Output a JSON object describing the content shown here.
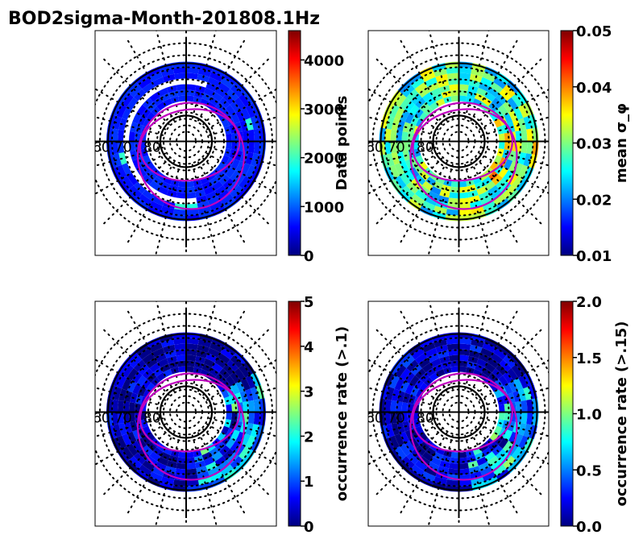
{
  "figure_title": "BOD2sigma-Month-201808.1Hz",
  "colormap": [
    "#00007f",
    "#0000ff",
    "#007fff",
    "#00ffff",
    "#7fff7f",
    "#ffff00",
    "#ff7f00",
    "#ff0000",
    "#7f0000"
  ],
  "trace_color": "#c000c0",
  "chart_data": [
    {
      "type": "heatmap",
      "projection": "polar",
      "lat_labels": [
        "60",
        "70",
        "80"
      ],
      "colorbar": {
        "label": "Data points",
        "min": 0,
        "max": 4600,
        "ticks": [
          "0",
          "1000",
          "2000",
          "3000",
          "4000"
        ],
        "tick_values": [
          0,
          1000,
          2000,
          3000,
          4000
        ]
      },
      "ring_level": 0.12,
      "variability": 0.08,
      "seed": 11
    },
    {
      "type": "heatmap",
      "projection": "polar",
      "lat_labels": [
        "60",
        "70",
        "80"
      ],
      "colorbar": {
        "label": "mean σ_φ",
        "min": 0.01,
        "max": 0.05,
        "ticks": [
          "0.01",
          "0.02",
          "0.03",
          "0.04",
          "0.05"
        ],
        "tick_values": [
          0.01,
          0.02,
          0.03,
          0.04,
          0.05
        ]
      },
      "ring_level": 0.45,
      "variability": 0.2,
      "seed": 23
    },
    {
      "type": "heatmap",
      "projection": "polar",
      "lat_labels": [
        "60",
        "70",
        "80"
      ],
      "colorbar": {
        "label": "occurrence rate (>.1)",
        "min": 0,
        "max": 5,
        "ticks": [
          "0",
          "1",
          "2",
          "3",
          "4",
          "5"
        ],
        "tick_values": [
          0,
          1,
          2,
          3,
          4,
          5
        ]
      },
      "ring_level": 0.06,
      "variability": 0.12,
      "seed": 37
    },
    {
      "type": "heatmap",
      "projection": "polar",
      "lat_labels": [
        "60",
        "70",
        "80"
      ],
      "colorbar": {
        "label": "occurrence rate (>.15)",
        "min": 0.0,
        "max": 2.0,
        "ticks": [
          "0.0",
          "0.5",
          "1.0",
          "1.5",
          "2.0"
        ],
        "tick_values": [
          0,
          0.5,
          1.0,
          1.5,
          2.0
        ]
      },
      "ring_level": 0.08,
      "variability": 0.12,
      "seed": 53
    }
  ]
}
